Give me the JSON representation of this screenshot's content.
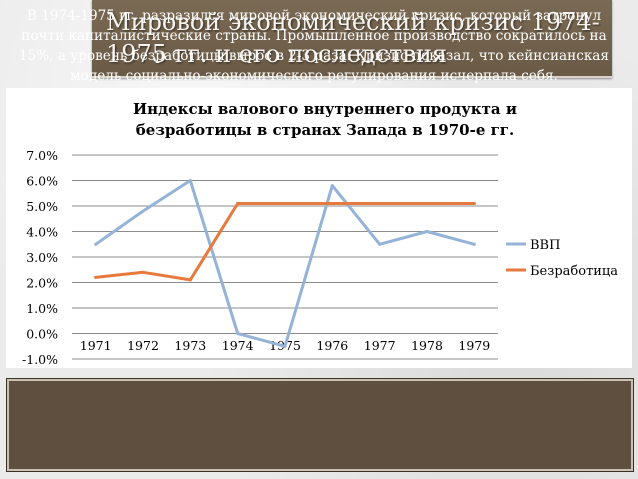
{
  "slide": {
    "title": "Мировой экономический кризис 1974-1975 гг. и его последствия",
    "caption": "В 1974-1975 гг. разразился мировой экономический кризис, который затронул почти капиталистические страны. Промышленное производство сократилось на 15%, а уровень безработицы вырос в 2-3 раза. Кризис показал, что кейнсианская модель социально-экономического регулирования исчерпала себя."
  },
  "colors": {
    "title_bar": "#6f5f4b",
    "caption_box": "#5e4f3f",
    "gdp_line": "#95b3d7",
    "unemployment_line": "#e8793c",
    "plot_area": "#ffffff",
    "grid": "#8c8c8c"
  },
  "chart_data": {
    "type": "line",
    "title": "Индексы валового внутреннего продукта и безработицы в странах Запада в 1970-е гг.",
    "categories": [
      "1971",
      "1972",
      "1973",
      "1974",
      "1975",
      "1976",
      "1977",
      "1978",
      "1979"
    ],
    "series": [
      {
        "name": "ВВП",
        "values": [
          3.5,
          4.8,
          6.0,
          0.0,
          -0.5,
          5.8,
          3.5,
          4.0,
          3.5
        ]
      },
      {
        "name": "Безработица",
        "values": [
          2.2,
          2.4,
          2.1,
          5.1,
          5.1,
          5.1,
          5.1,
          5.1,
          5.1
        ]
      }
    ],
    "y_ticks": [
      "-1.0%",
      "0.0%",
      "1.0%",
      "2.0%",
      "3.0%",
      "4.0%",
      "5.0%",
      "6.0%",
      "7.0%"
    ],
    "ylim": [
      -1.0,
      7.0
    ],
    "grid": true,
    "legend_position": "right"
  }
}
